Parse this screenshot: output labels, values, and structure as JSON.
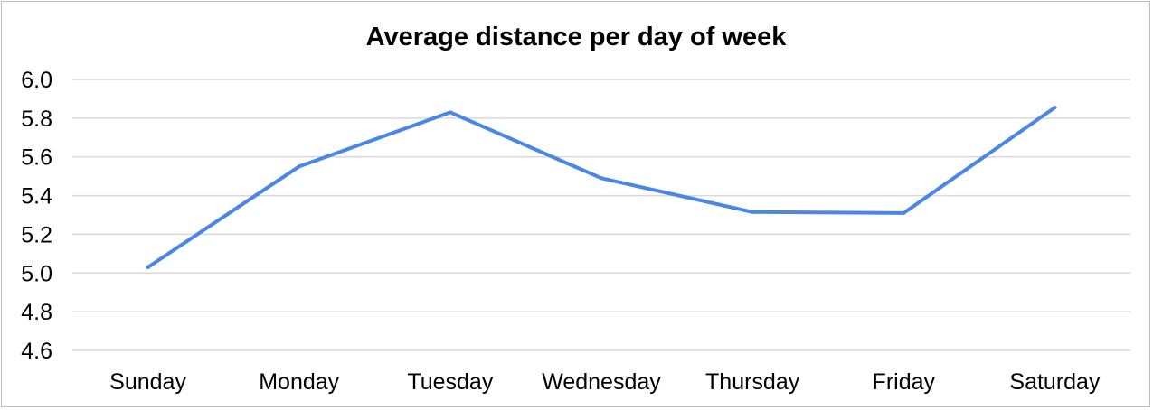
{
  "chart_data": {
    "type": "line",
    "title": "Average distance per day of week",
    "xlabel": "",
    "ylabel": "",
    "categories": [
      "Sunday",
      "Monday",
      "Tuesday",
      "Wednesday",
      "Thursday",
      "Friday",
      "Saturday"
    ],
    "series": [
      {
        "values": [
          5.03,
          5.55,
          5.83,
          5.49,
          5.315,
          5.31,
          5.855
        ],
        "color": "#4a86e8"
      }
    ],
    "ylim": [
      4.6,
      6.0
    ],
    "yticks": [
      "4.6",
      "4.8",
      "5.0",
      "5.2",
      "5.4",
      "5.6",
      "5.8",
      "6.0"
    ],
    "grid": true,
    "legend": "none"
  }
}
